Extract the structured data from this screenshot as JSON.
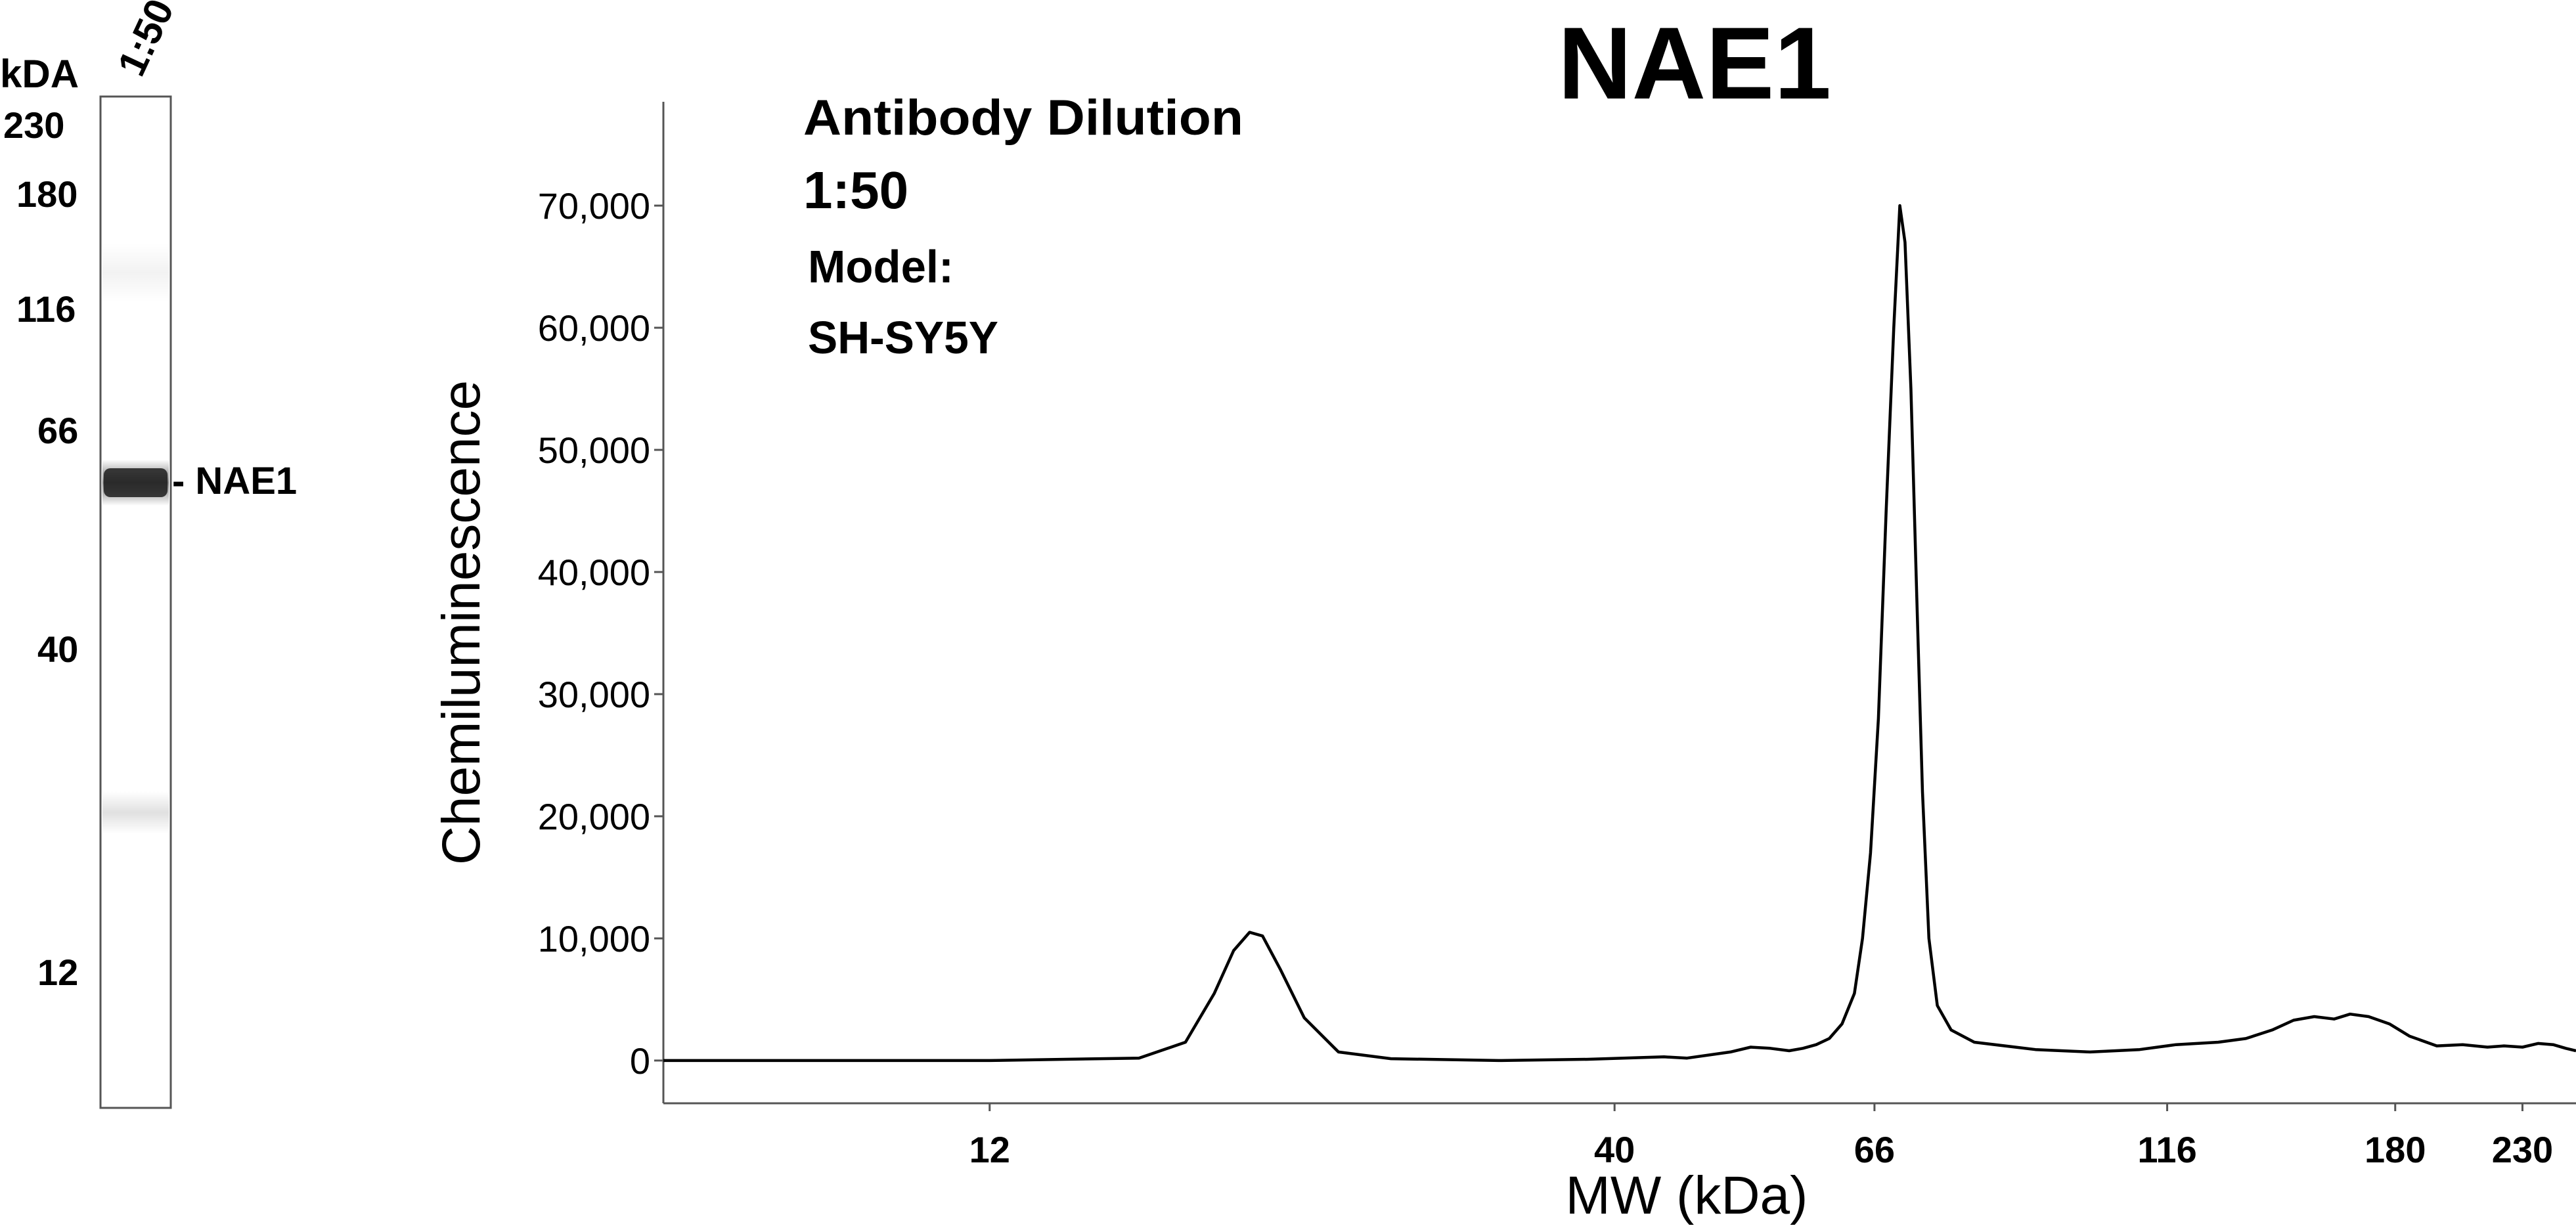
{
  "lane_image": {
    "unit_label": "kDA",
    "lane_label": "1:50",
    "markers": [
      "230",
      "180",
      "116",
      "66",
      "40",
      "12"
    ],
    "band_label": "- NAE1"
  },
  "info": {
    "line1": "Antibody Dilution",
    "line2": "1:50",
    "line3": "Model:",
    "line4": "SH-SY5Y"
  },
  "chart_data": {
    "type": "line",
    "title": "NAE1",
    "xlabel": "MW (kDa)",
    "ylabel": "Chemiluminescence",
    "x_scale": "log",
    "x_ticks": [
      12,
      40,
      66,
      116,
      180,
      230
    ],
    "y_ticks": [
      0,
      10000,
      20000,
      30000,
      40000,
      50000,
      60000,
      70000
    ],
    "y_tick_labels": [
      "0",
      "10,000",
      "20,000",
      "30,000",
      "40,000",
      "50,000",
      "60,000",
      "70,000"
    ],
    "xlim": [
      6.4,
      255
    ],
    "ylim": [
      -3500,
      78500
    ],
    "grid": false,
    "series": [
      {
        "values": [
          [
            6.4,
            0
          ],
          [
            9,
            0
          ],
          [
            12,
            0
          ],
          [
            16,
            200
          ],
          [
            17.5,
            1500
          ],
          [
            18.5,
            5500
          ],
          [
            19.2,
            9000
          ],
          [
            19.8,
            10500
          ],
          [
            20.3,
            10200
          ],
          [
            21,
            7500
          ],
          [
            22,
            3500
          ],
          [
            23.5,
            700
          ],
          [
            26,
            150
          ],
          [
            32,
            0
          ],
          [
            38,
            100
          ],
          [
            44,
            300
          ],
          [
            46,
            200
          ],
          [
            50,
            700
          ],
          [
            52,
            1100
          ],
          [
            54,
            1000
          ],
          [
            56,
            800
          ],
          [
            57.5,
            1000
          ],
          [
            59,
            1300
          ],
          [
            60.5,
            1800
          ],
          [
            62,
            3000
          ],
          [
            63.5,
            5500
          ],
          [
            64.5,
            10000
          ],
          [
            65.5,
            17000
          ],
          [
            66.5,
            28000
          ],
          [
            67.5,
            45000
          ],
          [
            68.5,
            60000
          ],
          [
            69.3,
            70000
          ],
          [
            70,
            67000
          ],
          [
            70.8,
            55000
          ],
          [
            71.6,
            38000
          ],
          [
            72.4,
            22000
          ],
          [
            73.3,
            10000
          ],
          [
            74.5,
            4500
          ],
          [
            76.5,
            2500
          ],
          [
            80,
            1500
          ],
          [
            90,
            900
          ],
          [
            100,
            700
          ],
          [
            110,
            900
          ],
          [
            118,
            1300
          ],
          [
            128,
            1500
          ],
          [
            135,
            1800
          ],
          [
            142,
            2500
          ],
          [
            148,
            3300
          ],
          [
            154,
            3600
          ],
          [
            160,
            3400
          ],
          [
            165,
            3800
          ],
          [
            171,
            3600
          ],
          [
            178,
            3000
          ],
          [
            185,
            2000
          ],
          [
            195,
            1200
          ],
          [
            205,
            1300
          ],
          [
            215,
            1100
          ],
          [
            222,
            1200
          ],
          [
            230,
            1100
          ],
          [
            237,
            1400
          ],
          [
            244,
            1300
          ],
          [
            250,
            1000
          ],
          [
            255,
            800
          ]
        ]
      }
    ]
  }
}
